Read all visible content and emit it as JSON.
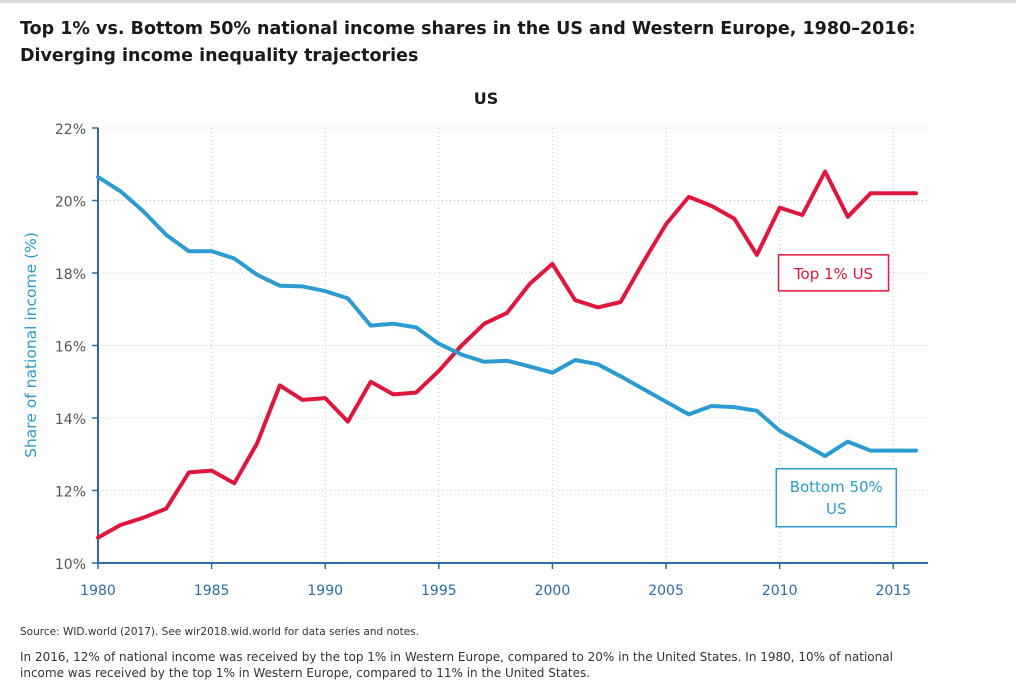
{
  "title": {
    "line1": "Top 1% vs. Bottom 50% national income shares in the US and Western Europe, 1980–2016:",
    "line2": "Diverging income inequality trajectories"
  },
  "source": "Source:  WID.world (2017). See wir2018.wid.world for data series and notes.",
  "note": {
    "line1": "In 2016, 12% of national income was received by the top 1% in Western Europe, compared to 20% in the United States. In 1980, 10% of national",
    "line2": "income was received by the top 1% in Western Europe, compared to 11% in the United States."
  },
  "colors": {
    "top1": "#e0173d",
    "bottom50": "#2b9bd0",
    "axis": "#2b6ca8",
    "tick_label": "#555555"
  },
  "chart_data": {
    "type": "line",
    "title": "US",
    "ylabel": "Share of national income (%)",
    "xlabel": "",
    "xlim": [
      1980,
      2016
    ],
    "ylim": [
      10,
      22
    ],
    "x_ticks": [
      1980,
      1985,
      1990,
      1995,
      2000,
      2005,
      2010,
      2015
    ],
    "y_ticks": [
      10,
      12,
      14,
      16,
      18,
      20,
      22
    ],
    "y_tick_labels": [
      "10%",
      "12%",
      "14%",
      "16%",
      "18%",
      "20%",
      "22%"
    ],
    "grid": "dotted",
    "x": [
      1980,
      1981,
      1982,
      1983,
      1984,
      1985,
      1986,
      1987,
      1988,
      1989,
      1990,
      1991,
      1992,
      1993,
      1994,
      1995,
      1996,
      1997,
      1998,
      1999,
      2000,
      2001,
      2002,
      2003,
      2004,
      2005,
      2006,
      2007,
      2008,
      2009,
      2010,
      2011,
      2012,
      2013,
      2014,
      2015,
      2016
    ],
    "series": [
      {
        "name": "Top 1% US",
        "label_lines": [
          "Top 1% US"
        ],
        "values": [
          10.7,
          11.05,
          11.25,
          11.5,
          12.5,
          12.55,
          12.2,
          13.3,
          14.9,
          14.5,
          14.55,
          13.9,
          15.0,
          14.65,
          14.7,
          15.3,
          16.0,
          16.6,
          16.9,
          17.7,
          18.25,
          17.25,
          17.05,
          17.2,
          18.3,
          19.35,
          20.1,
          19.85,
          19.5,
          18.5,
          19.8,
          19.6,
          20.8,
          19.55,
          20.2,
          20.2,
          20.2
        ]
      },
      {
        "name": "Bottom 50% US",
        "label_lines": [
          "Bottom 50%",
          "US"
        ],
        "values": [
          20.65,
          20.25,
          19.7,
          19.05,
          18.6,
          18.6,
          18.4,
          17.95,
          17.65,
          17.63,
          17.5,
          17.3,
          16.55,
          16.6,
          16.5,
          16.05,
          15.75,
          15.55,
          15.58,
          15.42,
          15.25,
          15.6,
          15.48,
          15.15,
          14.8,
          14.45,
          14.1,
          14.33,
          14.3,
          14.2,
          13.65,
          13.3,
          12.95,
          13.35,
          13.1,
          13.1,
          13.1
        ]
      }
    ]
  }
}
